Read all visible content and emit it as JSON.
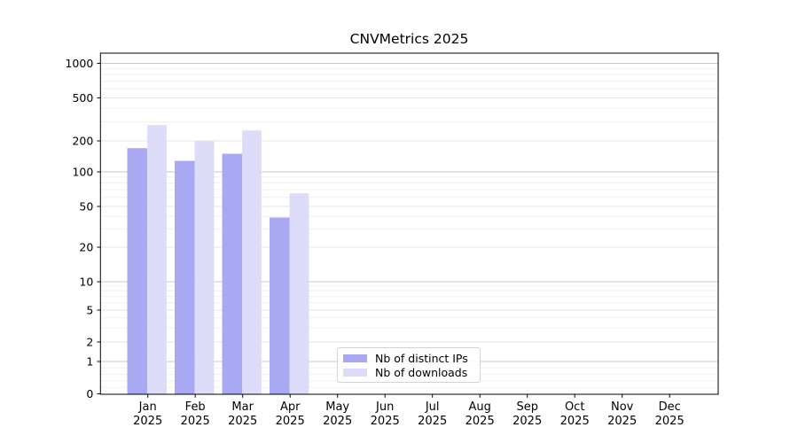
{
  "chart_data": {
    "type": "bar",
    "title": "CNVMetrics 2025",
    "year_label": "2025",
    "months": [
      "Jan",
      "Feb",
      "Mar",
      "Apr",
      "May",
      "Jun",
      "Jul",
      "Aug",
      "Sep",
      "Oct",
      "Nov",
      "Dec"
    ],
    "series": [
      {
        "name": "Nb of distinct IPs",
        "color": "#a9a9f3",
        "values": [
          170,
          128,
          150,
          39,
          null,
          null,
          null,
          null,
          null,
          null,
          null,
          null
        ]
      },
      {
        "name": "Nb of downloads",
        "color": "#dcdcf9",
        "values": [
          280,
          198,
          250,
          65,
          null,
          null,
          null,
          null,
          null,
          null,
          null,
          null
        ]
      }
    ],
    "y_axis": {
      "scale": "symlog",
      "ticks": [
        0,
        1,
        2,
        5,
        10,
        20,
        50,
        100,
        200,
        500,
        1000
      ],
      "tick_labels": [
        "0",
        "1",
        "2",
        "5",
        "10",
        "20",
        "50",
        "100",
        "200",
        "500",
        "1000"
      ]
    },
    "grid": "horizontal",
    "legend_position": "lower-center-inside"
  }
}
